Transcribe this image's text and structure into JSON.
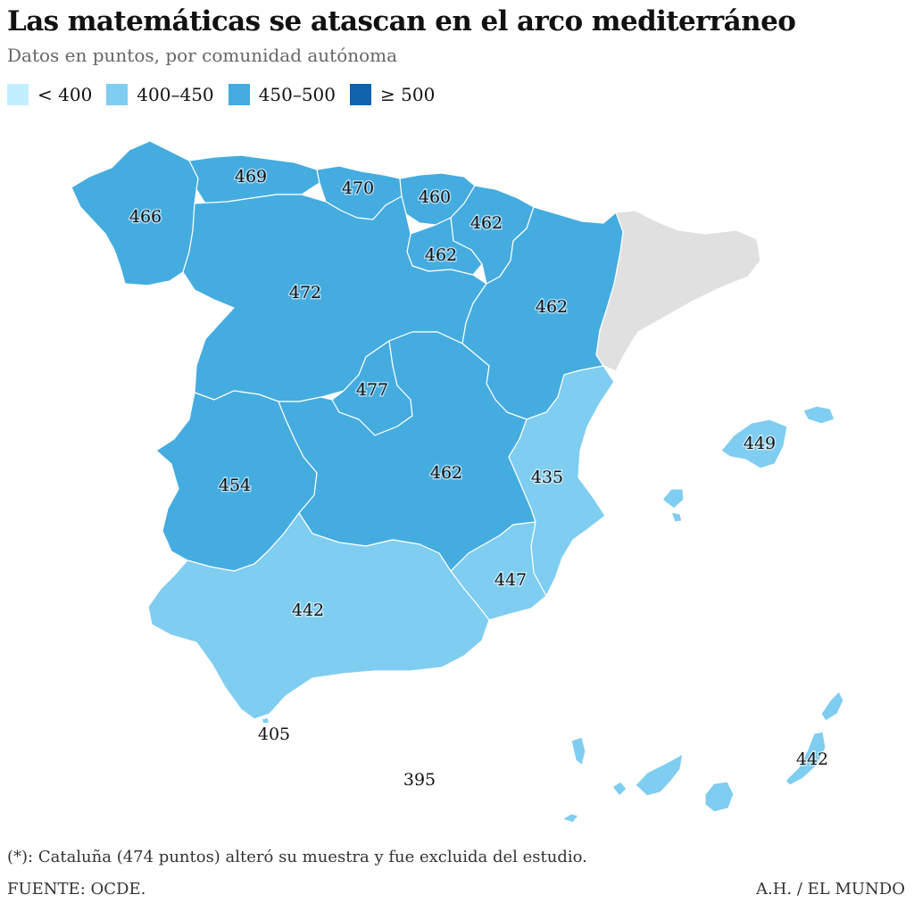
{
  "title": "Las matemáticas se atascan en el arco mediterráneo",
  "subtitle": "Datos en puntos, por comunidad autónoma",
  "legend": [
    {
      "label": "< 400",
      "color": "#c2efff"
    },
    {
      "label": "400–450",
      "color": "#7fcdf0"
    },
    {
      "label": "450–500",
      "color": "#45ace0"
    },
    {
      "label": "≥ 500",
      "color": "#0f63ad"
    }
  ],
  "excluded_color": "#e0e0e0",
  "regions": [
    {
      "name": "Galicia",
      "score": "466"
    },
    {
      "name": "Asturias",
      "score": "469"
    },
    {
      "name": "Cantabria",
      "score": "470"
    },
    {
      "name": "País Vasco",
      "score": "460"
    },
    {
      "name": "Navarra",
      "score": "462"
    },
    {
      "name": "La Rioja",
      "score": "462"
    },
    {
      "name": "Castilla y León",
      "score": "472"
    },
    {
      "name": "Aragón",
      "score": "462"
    },
    {
      "name": "Madrid",
      "score": "477"
    },
    {
      "name": "Extremadura",
      "score": "454"
    },
    {
      "name": "Castilla-La Mancha",
      "score": "462"
    },
    {
      "name": "Comunidad Valenciana",
      "score": "435"
    },
    {
      "name": "Baleares",
      "score": "449"
    },
    {
      "name": "Murcia",
      "score": "447"
    },
    {
      "name": "Andalucía",
      "score": "442"
    },
    {
      "name": "Ceuta",
      "score": "405"
    },
    {
      "name": "Melilla",
      "score": "395"
    },
    {
      "name": "Canarias",
      "score": "442"
    },
    {
      "name": "Cataluña",
      "score": ""
    }
  ],
  "footnote": "(*): Cataluña (474 puntos) alteró su muestra y fue excluida del estudio.",
  "source": "FUENTE: OCDE.",
  "credit": "A.H. / EL MUNDO"
}
